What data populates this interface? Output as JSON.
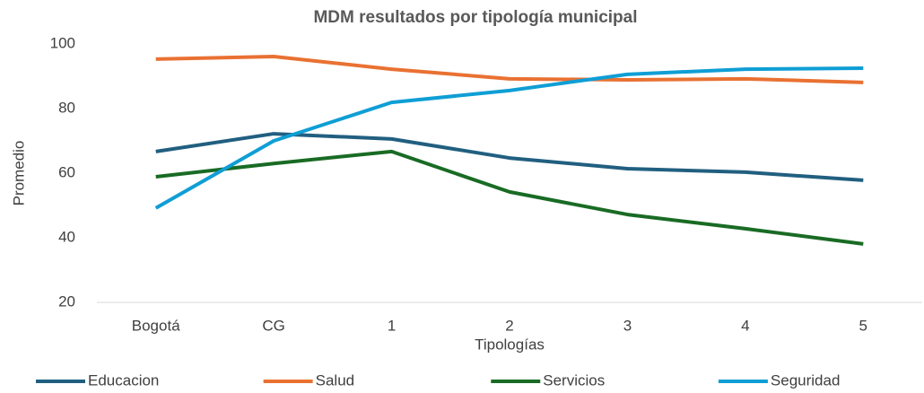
{
  "chart_data": {
    "type": "line",
    "title": "MDM resultados por tipología municipal",
    "x_label": "Tipologías",
    "y_label": "Promedio",
    "categories": [
      "Bogotá",
      "CG",
      "1",
      "2",
      "3",
      "4",
      "5"
    ],
    "series": [
      {
        "name": "Educacion",
        "color": "#215f80",
        "values": [
          66.7,
          72.2,
          70.6,
          64.7,
          61.4,
          60.3,
          57.8
        ]
      },
      {
        "name": "Salud",
        "color": "#e97132",
        "values": [
          95.3,
          96.1,
          92.2,
          89.2,
          88.9,
          89.2,
          88.1
        ]
      },
      {
        "name": "Servicios",
        "color": "#196b24",
        "values": [
          58.9,
          63,
          66.7,
          54.2,
          47.2,
          42.8,
          38.1
        ]
      },
      {
        "name": "Seguridad",
        "color": "#0f9ed5",
        "values": [
          49.2,
          70,
          81.9,
          85.6,
          90.6,
          92.2,
          92.5
        ]
      }
    ],
    "ylim": [
      20,
      100
    ],
    "yticks": [
      20,
      40,
      60,
      80,
      100
    ],
    "grid": false,
    "legend": "bottom"
  }
}
